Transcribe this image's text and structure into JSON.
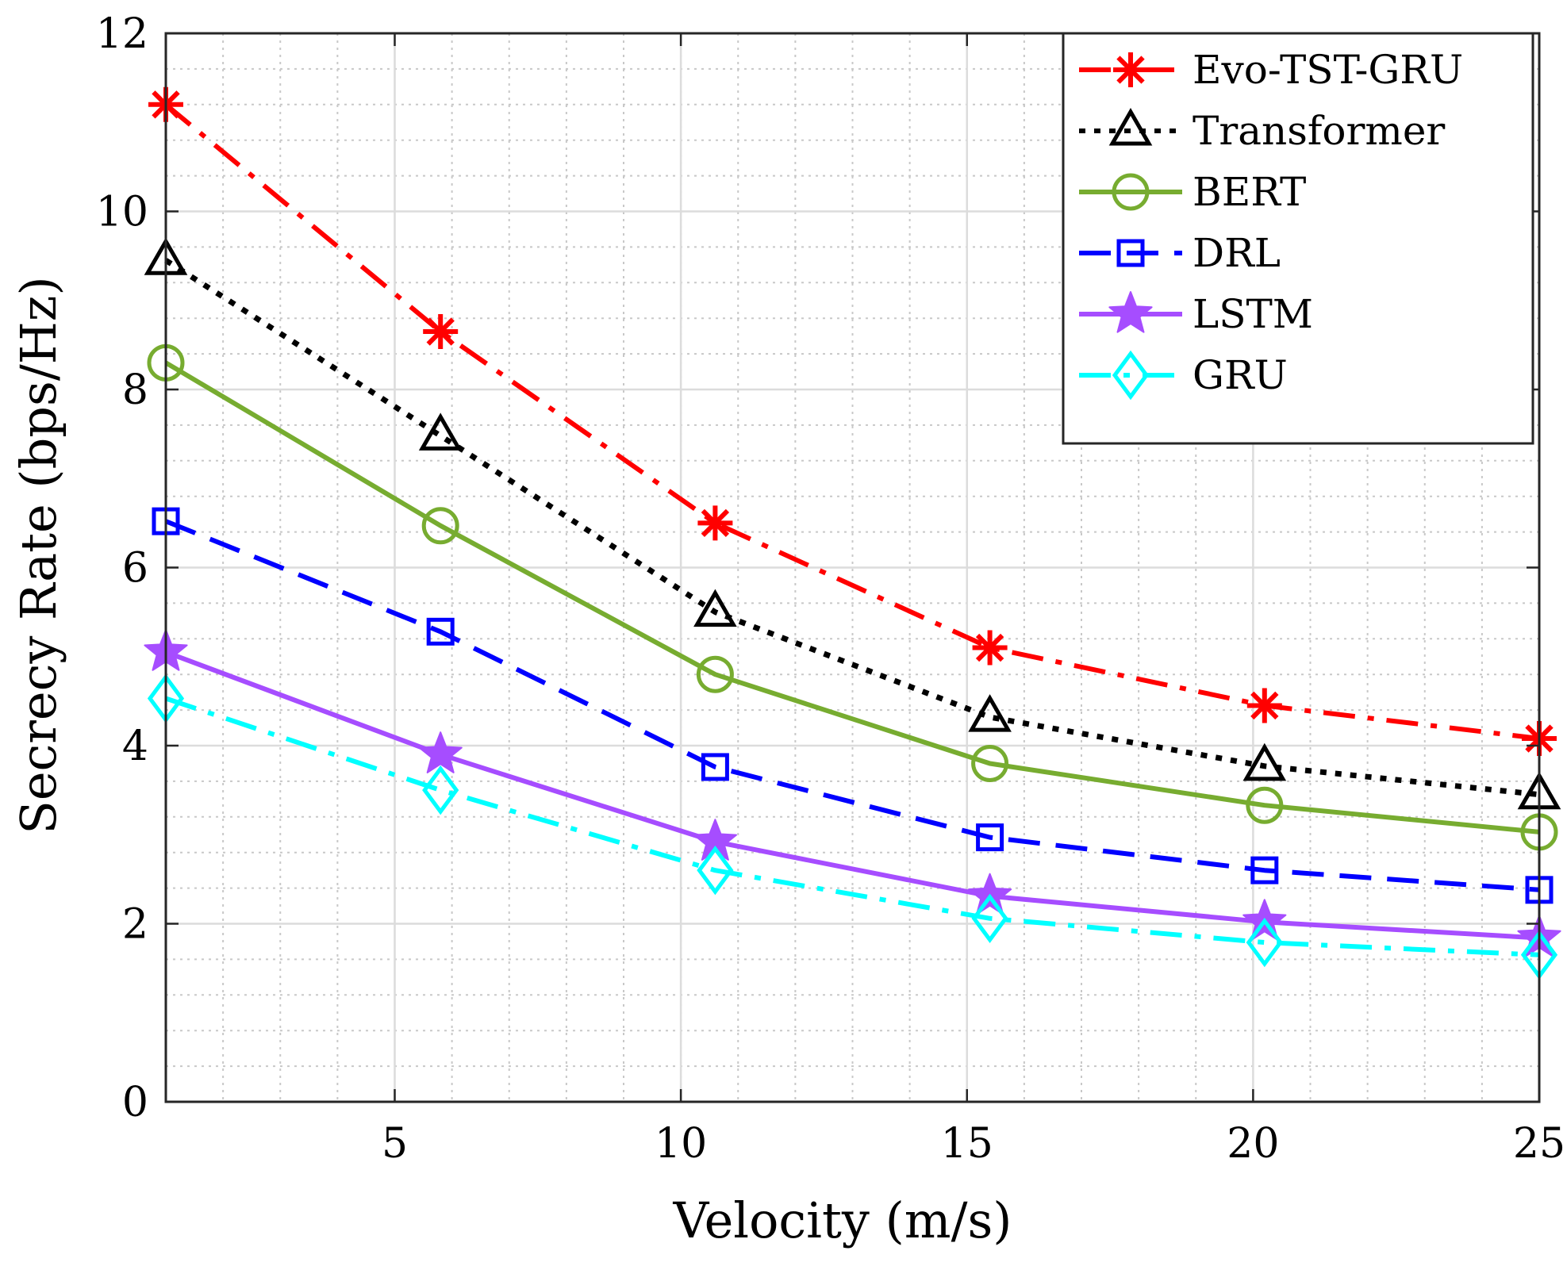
{
  "chart_data": {
    "type": "line",
    "title": "",
    "xlabel": "Velocity (m/s)",
    "ylabel": "Secrecy Rate (bps/Hz)",
    "xlim": [
      1,
      25
    ],
    "ylim": [
      0,
      12
    ],
    "xticks": [
      5,
      10,
      15,
      20,
      25
    ],
    "yticks": [
      0,
      2,
      4,
      6,
      8,
      10,
      12
    ],
    "grid": true,
    "minor_grid": true,
    "legend_position": "top-right",
    "x": [
      1,
      5.8,
      10.6,
      15.4,
      20.2,
      25
    ],
    "series": [
      {
        "name": "Evo-TST-GRU",
        "color": "#ff0000",
        "dash": "dashdot",
        "marker": "asterisk",
        "values": [
          11.2,
          8.65,
          6.5,
          5.1,
          4.45,
          4.08
        ]
      },
      {
        "name": "Transformer",
        "color": "#000000",
        "dash": "dotted",
        "marker": "triangle",
        "values": [
          9.45,
          7.48,
          5.5,
          4.32,
          3.77,
          3.45
        ]
      },
      {
        "name": "BERT",
        "color": "#77ac30",
        "dash": "solid",
        "marker": "circle",
        "values": [
          8.3,
          6.47,
          4.8,
          3.8,
          3.33,
          3.03
        ]
      },
      {
        "name": "DRL",
        "color": "#0000ff",
        "dash": "dashed",
        "marker": "square",
        "values": [
          6.52,
          5.28,
          3.76,
          2.97,
          2.6,
          2.38
        ]
      },
      {
        "name": "LSTM",
        "color": "#a64dff",
        "dash": "solid",
        "marker": "star",
        "values": [
          5.05,
          3.9,
          2.92,
          2.31,
          2.02,
          1.84
        ]
      },
      {
        "name": "GRU",
        "color": "#00ffff",
        "dash": "dashdot",
        "marker": "diamond",
        "values": [
          4.53,
          3.5,
          2.6,
          2.06,
          1.79,
          1.65
        ]
      }
    ]
  }
}
